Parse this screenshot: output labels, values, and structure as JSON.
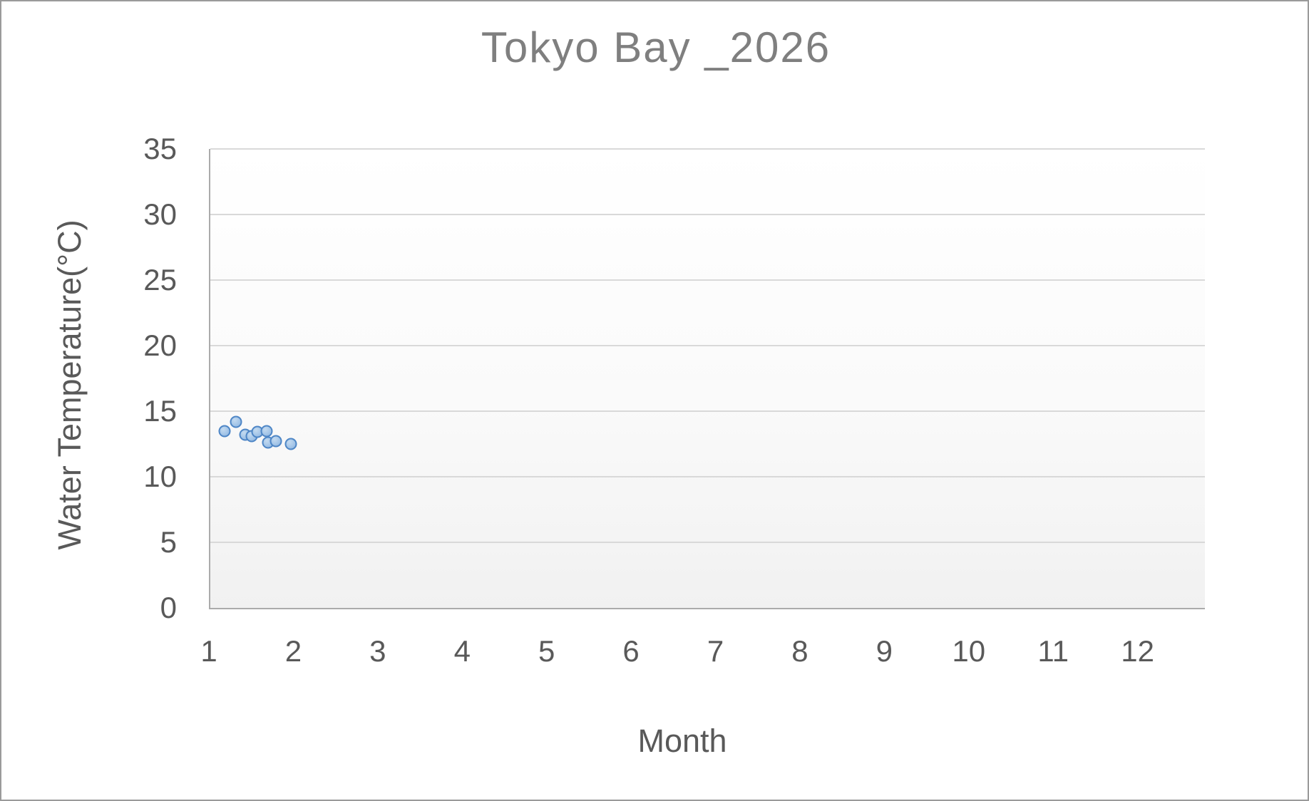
{
  "chart_data": {
    "type": "scatter",
    "title": "Tokyo Bay _2026",
    "xlabel": "Month",
    "ylabel": "Water Temperature(°C)",
    "xlim": [
      1,
      12.78
    ],
    "ylim": [
      0,
      35
    ],
    "x_ticks": [
      1,
      2,
      3,
      4,
      5,
      6,
      7,
      8,
      9,
      10,
      11,
      12
    ],
    "y_ticks": [
      0,
      5,
      10,
      15,
      20,
      25,
      30,
      35
    ],
    "grid": "horizontal-only",
    "legend": "none",
    "series": [
      {
        "name": "Water Temperature",
        "marker": "circle",
        "marker_fill": "#A5C6E8",
        "marker_stroke": "#4E86C6",
        "points": [
          {
            "x": 1.17,
            "y": 13.5
          },
          {
            "x": 1.3,
            "y": 14.2
          },
          {
            "x": 1.41,
            "y": 13.2
          },
          {
            "x": 1.49,
            "y": 13.1
          },
          {
            "x": 1.56,
            "y": 13.4
          },
          {
            "x": 1.67,
            "y": 13.5
          },
          {
            "x": 1.68,
            "y": 12.6
          },
          {
            "x": 1.78,
            "y": 12.7
          },
          {
            "x": 1.95,
            "y": 12.5
          }
        ]
      }
    ],
    "colors": {
      "title": "#7F7F7F",
      "tick_label": "#595959",
      "axis_title": "#595959",
      "gridline": "#D9D9D9",
      "axis_line": "#ABABAB",
      "plot_bg_top": "#FFFFFF",
      "plot_bg_bottom": "#F1F1F1",
      "page_border": "#9A9A9A"
    }
  }
}
